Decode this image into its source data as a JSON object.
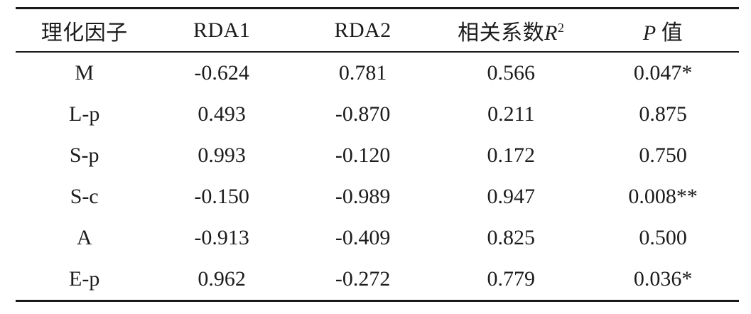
{
  "page": {
    "background": "#ffffff",
    "text_color": "#1c1c1c",
    "rule_color": "#1a1a1a"
  },
  "table": {
    "headers": {
      "factor": "理化因子",
      "rda1": "RDA1",
      "rda2": "RDA2",
      "r2_prefix": "相关系数",
      "r2_symbol": "R",
      "r2_sup": "2",
      "p_symbol": "P",
      "p_suffix": "值"
    },
    "rows": [
      [
        "M",
        "-0.624",
        "0.781",
        "0.566",
        "0.047*"
      ],
      [
        "L-p",
        "0.493",
        "-0.870",
        "0.211",
        "0.875"
      ],
      [
        "S-p",
        "0.993",
        "-0.120",
        "0.172",
        "0.750"
      ],
      [
        "S-c",
        "-0.150",
        "-0.989",
        "0.947",
        "0.008**"
      ],
      [
        "A",
        "-0.913",
        "-0.409",
        "0.825",
        "0.500"
      ],
      [
        "E-p",
        "0.962",
        "-0.272",
        "0.779",
        "0.036*"
      ]
    ]
  }
}
